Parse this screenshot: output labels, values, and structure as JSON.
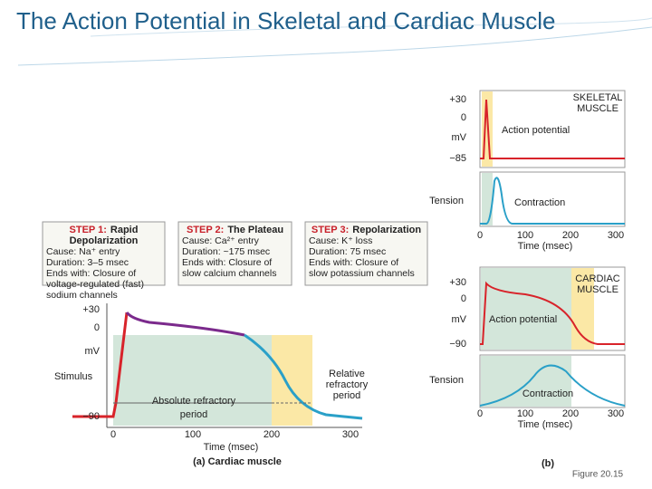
{
  "title": "The Action Potential in Skeletal and Cardiac Muscle",
  "figure_a": {
    "steps": [
      {
        "label": "STEP 1:",
        "heading_lines": [
          "Rapid",
          "Depolarization"
        ],
        "lines": [
          "Cause: Na⁺ entry",
          "Duration: 3–5 msec",
          "Ends with: Closure of",
          "voltage-regulated (fast)",
          "sodium channels"
        ]
      },
      {
        "label": "STEP 2:",
        "heading_lines": [
          "The Plateau"
        ],
        "lines": [
          "Cause: Ca²⁺ entry",
          "Duration: ~175 msec",
          "Ends with: Closure of",
          "slow calcium channels"
        ]
      },
      {
        "label": "STEP 3:",
        "heading_lines": [
          "Repolarization"
        ],
        "lines": [
          "Cause: K⁺ loss",
          "Duration: 75 msec",
          "Ends with: Closure of",
          "slow potassium channels"
        ]
      }
    ],
    "y_labels": [
      "+30",
      "0",
      "mV",
      "−90"
    ],
    "stimulus": "Stimulus",
    "absolute_refractory": [
      "Absolute refractory",
      "period"
    ],
    "relative_refractory": [
      "Relative",
      "refractory",
      "period"
    ],
    "x_ticks": [
      "0",
      "100",
      "200",
      "300"
    ],
    "x_label": "Time (msec)",
    "caption": "(a) Cardiac muscle"
  },
  "figure_b": {
    "skeletal": {
      "name_lines": [
        "SKELETAL",
        "MUSCLE"
      ],
      "y_labels": [
        "+30",
        "0",
        "mV",
        "−85"
      ],
      "action_potential": "Action potential",
      "tension": "Tension",
      "contraction": "Contraction",
      "x_ticks": [
        "0",
        "100",
        "200",
        "300"
      ],
      "x_label": "Time (msec)"
    },
    "cardiac": {
      "name_lines": [
        "CARDIAC",
        "MUSCLE"
      ],
      "y_labels": [
        "+30",
        "0",
        "mV",
        "−90"
      ],
      "action_potential": "Action potential",
      "tension": "Tension",
      "contraction": "Contraction",
      "x_ticks": [
        "0",
        "100",
        "200",
        "300"
      ],
      "x_label": "Time (msec)"
    },
    "caption": "(b)"
  },
  "figure_number": "Figure 20.15"
}
